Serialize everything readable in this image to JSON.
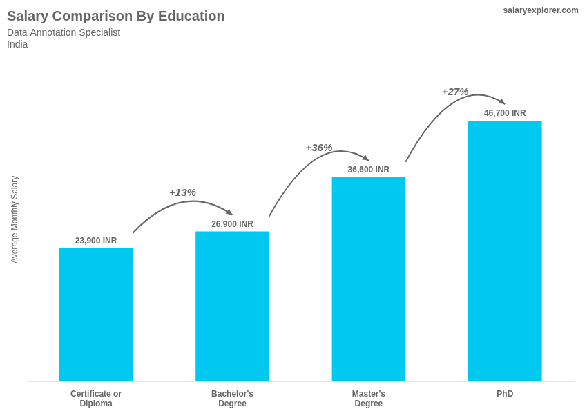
{
  "chart_data": {
    "type": "bar",
    "title": "Salary Comparison By Education",
    "subtitle": "Data Annotation Specialist",
    "country": "India",
    "watermark": "salaryexplorer.com",
    "ylabel": "Average Monthly Salary",
    "categories": [
      "Certificate or\nDiploma",
      "Bachelor's\nDegree",
      "Master's\nDegree",
      "PhD"
    ],
    "values": [
      23900,
      26900,
      36600,
      46700
    ],
    "value_labels": [
      "23,900 INR",
      "26,900 INR",
      "36,600 INR",
      "46,700 INR"
    ],
    "data_labels": true,
    "annotations": [
      "+13%",
      "+36%",
      "+27%"
    ],
    "color": "#00c8f0",
    "ylim": [
      0,
      58000
    ],
    "grid": false,
    "legend": false,
    "tick_labels": "x"
  }
}
